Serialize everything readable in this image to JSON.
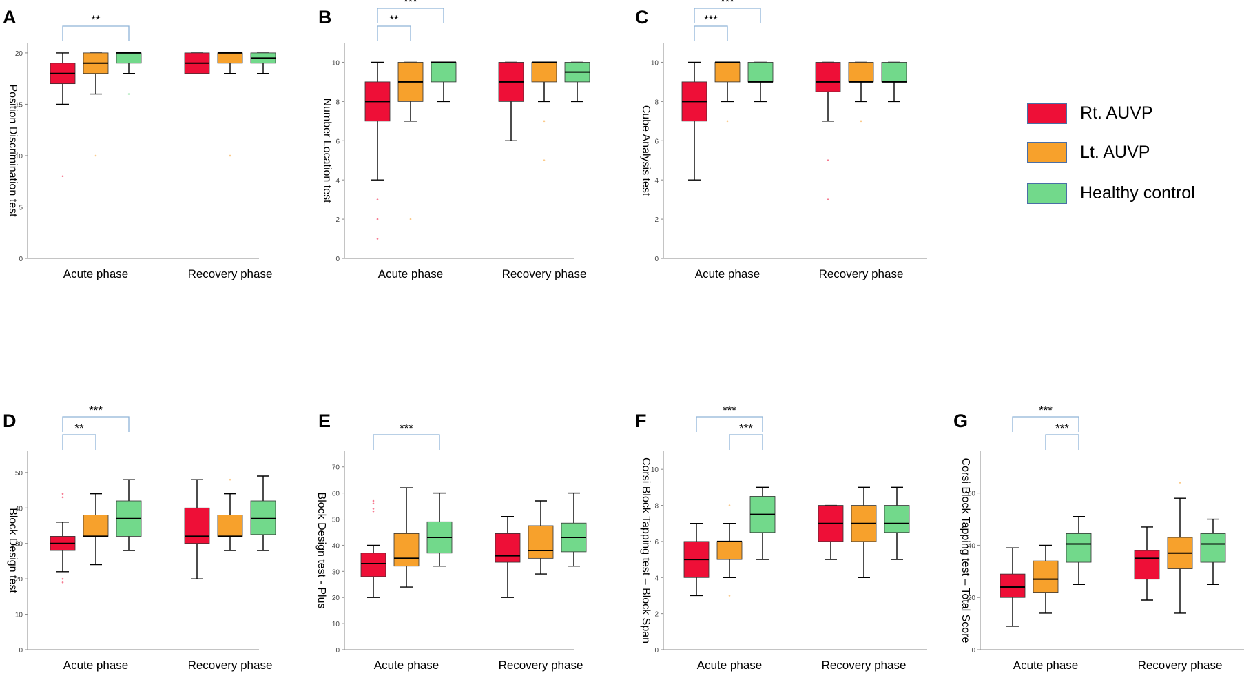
{
  "figure": {
    "group_labels": [
      "Acute phase",
      "Recovery phase"
    ],
    "legend": [
      {
        "label": "Rt. AUVP",
        "color": "#ee0f37"
      },
      {
        "label": "Lt. AUVP",
        "color": "#f7a12c"
      },
      {
        "label": "Healthy control",
        "color": "#72d98b"
      }
    ],
    "colors": {
      "sig_bracket": "#8fb4d8",
      "axis": "#888888"
    }
  },
  "chart_data": [
    {
      "type": "box",
      "panel": "A",
      "ylabel": "Position Discrimination test",
      "ylim": [
        0,
        21
      ],
      "yticks": [
        0,
        5,
        10,
        15,
        20
      ],
      "groups": [
        "Acute phase",
        "Recovery phase"
      ],
      "series": [
        {
          "name": "Rt. AUVP",
          "boxes": [
            {
              "min": 15,
              "q1": 17,
              "median": 18,
              "q3": 19,
              "max": 20,
              "outliers": [
                8
              ]
            },
            {
              "min": 18,
              "q1": 18,
              "median": 19,
              "q3": 20,
              "max": 20,
              "outliers": []
            }
          ]
        },
        {
          "name": "Lt. AUVP",
          "boxes": [
            {
              "min": 16,
              "q1": 18,
              "median": 19,
              "q3": 20,
              "max": 20,
              "outliers": [
                10
              ]
            },
            {
              "min": 18,
              "q1": 19,
              "median": 20,
              "q3": 20,
              "max": 20,
              "outliers": [
                10
              ]
            }
          ]
        },
        {
          "name": "Healthy control",
          "boxes": [
            {
              "min": 18,
              "q1": 19,
              "median": 20,
              "q3": 20,
              "max": 20,
              "outliers": [
                16
              ]
            },
            {
              "min": 18,
              "q1": 19,
              "median": 19.5,
              "q3": 20,
              "max": 20,
              "outliers": []
            }
          ]
        }
      ],
      "significance": [
        {
          "from": 0,
          "to": 2,
          "label": "**",
          "level": 1
        }
      ]
    },
    {
      "type": "box",
      "panel": "B",
      "ylabel": "Number Location test",
      "ylim": [
        0,
        11
      ],
      "yticks": [
        0,
        2,
        4,
        6,
        8,
        10
      ],
      "groups": [
        "Acute phase",
        "Recovery phase"
      ],
      "series": [
        {
          "name": "Rt. AUVP",
          "boxes": [
            {
              "min": 4,
              "q1": 7,
              "median": 8,
              "q3": 9,
              "max": 10,
              "outliers": [
                3,
                2,
                1
              ]
            },
            {
              "min": 6,
              "q1": 8,
              "median": 9,
              "q3": 10,
              "max": 10,
              "outliers": []
            }
          ]
        },
        {
          "name": "Lt. AUVP",
          "boxes": [
            {
              "min": 7,
              "q1": 8,
              "median": 9,
              "q3": 10,
              "max": 10,
              "outliers": [
                2
              ]
            },
            {
              "min": 8,
              "q1": 9,
              "median": 10,
              "q3": 10,
              "max": 10,
              "outliers": [
                7,
                5
              ]
            }
          ]
        },
        {
          "name": "Healthy control",
          "boxes": [
            {
              "min": 8,
              "q1": 9,
              "median": 10,
              "q3": 10,
              "max": 10,
              "outliers": []
            },
            {
              "min": 8,
              "q1": 9,
              "median": 9.5,
              "q3": 10,
              "max": 10,
              "outliers": []
            }
          ]
        }
      ],
      "significance": [
        {
          "from": 0,
          "to": 1,
          "label": "**",
          "level": 1
        },
        {
          "from": 0,
          "to": 2,
          "label": "***",
          "level": 2
        }
      ]
    },
    {
      "type": "box",
      "panel": "C",
      "ylabel": "Cube Analysis test",
      "ylim": [
        0,
        11
      ],
      "yticks": [
        0,
        2,
        4,
        6,
        8,
        10
      ],
      "groups": [
        "Acute phase",
        "Recovery phase"
      ],
      "series": [
        {
          "name": "Rt. AUVP",
          "boxes": [
            {
              "min": 4,
              "q1": 7,
              "median": 8,
              "q3": 9,
              "max": 10,
              "outliers": []
            },
            {
              "min": 7,
              "q1": 8.5,
              "median": 9,
              "q3": 10,
              "max": 10,
              "outliers": [
                5,
                3
              ]
            }
          ]
        },
        {
          "name": "Lt. AUVP",
          "boxes": [
            {
              "min": 8,
              "q1": 9,
              "median": 10,
              "q3": 10,
              "max": 10,
              "outliers": [
                7
              ]
            },
            {
              "min": 8,
              "q1": 9,
              "median": 9,
              "q3": 10,
              "max": 10,
              "outliers": [
                7
              ]
            }
          ]
        },
        {
          "name": "Healthy control",
          "boxes": [
            {
              "min": 8,
              "q1": 9,
              "median": 9,
              "q3": 10,
              "max": 10,
              "outliers": []
            },
            {
              "min": 8,
              "q1": 9,
              "median": 9,
              "q3": 10,
              "max": 10,
              "outliers": []
            }
          ]
        }
      ],
      "significance": [
        {
          "from": 0,
          "to": 1,
          "label": "***",
          "level": 1
        },
        {
          "from": 0,
          "to": 2,
          "label": "***",
          "level": 2
        }
      ]
    },
    {
      "type": "box",
      "panel": "D",
      "ylabel": "Block Design test",
      "ylim": [
        0,
        56
      ],
      "yticks": [
        0,
        10,
        20,
        30,
        40,
        50
      ],
      "groups": [
        "Acute phase",
        "Recovery phase"
      ],
      "series": [
        {
          "name": "Rt. AUVP",
          "boxes": [
            {
              "min": 22,
              "q1": 28,
              "median": 30,
              "q3": 32,
              "max": 36,
              "outliers": [
                44,
                43,
                20,
                19
              ]
            },
            {
              "min": 20,
              "q1": 30,
              "median": 32,
              "q3": 40,
              "max": 48,
              "outliers": []
            }
          ]
        },
        {
          "name": "Lt. AUVP",
          "boxes": [
            {
              "min": 24,
              "q1": 32,
              "median": 32,
              "q3": 38,
              "max": 44,
              "outliers": []
            },
            {
              "min": 28,
              "q1": 32,
              "median": 32,
              "q3": 38,
              "max": 44,
              "outliers": [
                48
              ]
            }
          ]
        },
        {
          "name": "Healthy control",
          "boxes": [
            {
              "min": 28,
              "q1": 32,
              "median": 37,
              "q3": 42,
              "max": 48,
              "outliers": []
            },
            {
              "min": 28,
              "q1": 32.5,
              "median": 37,
              "q3": 42,
              "max": 49,
              "outliers": []
            }
          ]
        }
      ],
      "significance": [
        {
          "from": 0,
          "to": 1,
          "label": "**",
          "level": 1
        },
        {
          "from": 0,
          "to": 2,
          "label": "***",
          "level": 2
        }
      ]
    },
    {
      "type": "box",
      "panel": "E",
      "ylabel": "Block Design test - Plus",
      "ylim": [
        0,
        76
      ],
      "yticks": [
        0,
        10,
        20,
        30,
        40,
        50,
        60,
        70
      ],
      "groups": [
        "Acute phase",
        "Recovery phase"
      ],
      "series": [
        {
          "name": "Rt. AUVP",
          "boxes": [
            {
              "min": 20,
              "q1": 28,
              "median": 33,
              "q3": 37,
              "max": 40,
              "outliers": [
                57,
                56,
                54,
                53
              ]
            },
            {
              "min": 20,
              "q1": 33.5,
              "median": 36,
              "q3": 44.5,
              "max": 51,
              "outliers": []
            }
          ]
        },
        {
          "name": "Lt. AUVP",
          "boxes": [
            {
              "min": 24,
              "q1": 32,
              "median": 35,
              "q3": 44.5,
              "max": 62,
              "outliers": []
            },
            {
              "min": 29,
              "q1": 35,
              "median": 38,
              "q3": 47.5,
              "max": 57,
              "outliers": []
            }
          ]
        },
        {
          "name": "Healthy control",
          "boxes": [
            {
              "min": 32,
              "q1": 37,
              "median": 43,
              "q3": 49,
              "max": 60,
              "outliers": []
            },
            {
              "min": 32,
              "q1": 37.5,
              "median": 43,
              "q3": 48.5,
              "max": 60,
              "outliers": []
            }
          ]
        }
      ],
      "significance": [
        {
          "from": 0,
          "to": 2,
          "label": "***",
          "level": 1
        }
      ]
    },
    {
      "type": "box",
      "panel": "F",
      "ylabel": "Corsi Block Tapping test – Block Span",
      "ylim": [
        0,
        11
      ],
      "yticks": [
        0,
        2,
        4,
        6,
        8,
        10
      ],
      "groups": [
        "Acute phase",
        "Recovery phase"
      ],
      "series": [
        {
          "name": "Rt. AUVP",
          "boxes": [
            {
              "min": 3,
              "q1": 4,
              "median": 5,
              "q3": 6,
              "max": 7,
              "outliers": []
            },
            {
              "min": 5,
              "q1": 6,
              "median": 7,
              "q3": 8,
              "max": 8,
              "outliers": []
            }
          ]
        },
        {
          "name": "Lt. AUVP",
          "boxes": [
            {
              "min": 4,
              "q1": 5,
              "median": 6,
              "q3": 6,
              "max": 7,
              "outliers": [
                8,
                3
              ]
            },
            {
              "min": 4,
              "q1": 6,
              "median": 7,
              "q3": 8,
              "max": 9,
              "outliers": []
            }
          ]
        },
        {
          "name": "Healthy control",
          "boxes": [
            {
              "min": 5,
              "q1": 6.5,
              "median": 7.5,
              "q3": 8.5,
              "max": 9,
              "outliers": []
            },
            {
              "min": 5,
              "q1": 6.5,
              "median": 7,
              "q3": 8,
              "max": 9,
              "outliers": []
            }
          ]
        }
      ],
      "significance": [
        {
          "from": 1,
          "to": 2,
          "label": "***",
          "level": 1
        },
        {
          "from": 0,
          "to": 2,
          "label": "***",
          "level": 2
        }
      ]
    },
    {
      "type": "box",
      "panel": "G",
      "ylabel": "Corsi Block Tapping test – Total Score",
      "ylim": [
        0,
        76
      ],
      "yticks": [
        0,
        20,
        40,
        60
      ],
      "groups": [
        "Acute phase",
        "Recovery phase"
      ],
      "series": [
        {
          "name": "Rt. AUVP",
          "boxes": [
            {
              "min": 9,
              "q1": 20,
              "median": 24,
              "q3": 29,
              "max": 39,
              "outliers": []
            },
            {
              "min": 19,
              "q1": 27,
              "median": 35,
              "q3": 38,
              "max": 47,
              "outliers": []
            }
          ]
        },
        {
          "name": "Lt. AUVP",
          "boxes": [
            {
              "min": 14,
              "q1": 22,
              "median": 27,
              "q3": 34,
              "max": 40,
              "outliers": []
            },
            {
              "min": 14,
              "q1": 31,
              "median": 37,
              "q3": 43,
              "max": 58,
              "outliers": [
                64
              ]
            }
          ]
        },
        {
          "name": "Healthy control",
          "boxes": [
            {
              "min": 25,
              "q1": 33.5,
              "median": 40.5,
              "q3": 44.5,
              "max": 51,
              "outliers": []
            },
            {
              "min": 25,
              "q1": 33.5,
              "median": 40.5,
              "q3": 44.5,
              "max": 50,
              "outliers": []
            }
          ]
        }
      ],
      "significance": [
        {
          "from": 1,
          "to": 2,
          "label": "***",
          "level": 1
        },
        {
          "from": 0,
          "to": 2,
          "label": "***",
          "level": 2
        }
      ]
    }
  ]
}
